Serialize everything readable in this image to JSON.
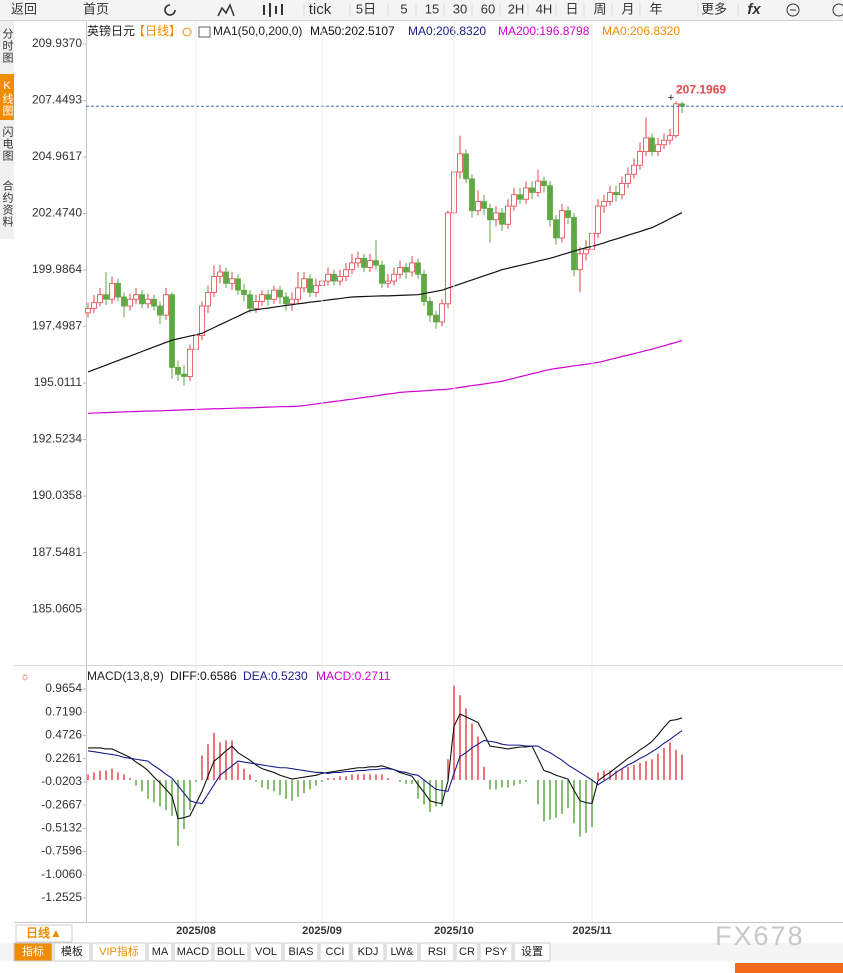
{
  "toolbar": [
    "返回",
    "首页",
    "tick",
    "5日",
    "5",
    "15",
    "30",
    "60",
    "2H",
    "4H",
    "日",
    "周",
    "月",
    "年",
    "更多",
    "fx"
  ],
  "sidebar": [
    "分时图",
    "K线图",
    "闪电图",
    "合约资料"
  ],
  "period_button": "日线▲",
  "indicator_tabs": [
    "指标",
    "模板",
    "VIP指标",
    "MA",
    "MACD",
    "BOLL",
    "VOL",
    "BIAS",
    "CCI",
    "KDJ",
    "LW&",
    "RSI",
    "CR",
    "PSY",
    "设置"
  ],
  "watermark": "FX678",
  "chart_data": [
    {
      "type": "candlestick",
      "symbol": "英镑日元",
      "period": "【日线】",
      "indicator": "MA1(50,0,200,0)",
      "up_color": "#e2474b",
      "down_color": "#5fa843",
      "open": [
        198.1,
        198.3,
        198.55,
        198.9,
        198.7,
        199.4,
        198.8,
        198.4,
        198.7,
        198.9,
        198.5,
        198.7,
        198.4,
        198.0,
        198.9,
        195.7,
        195.4,
        195.3,
        196.5,
        197.1,
        198.4,
        199.0,
        199.7,
        199.9,
        199.4,
        199.6,
        199.1,
        198.9,
        198.3,
        198.6,
        198.9,
        198.7,
        199.1,
        198.8,
        198.5,
        198.7,
        199.2,
        199.6,
        199.0,
        199.3,
        199.5,
        199.8,
        199.5,
        199.7,
        200.0,
        200.3,
        200.5,
        200.1,
        200.4,
        200.2,
        199.4,
        199.5,
        199.8,
        200.1,
        199.9,
        200.3,
        199.8,
        198.6,
        198.0,
        197.7,
        198.5,
        202.5,
        204.3,
        205.1,
        204.0,
        202.6,
        203.0,
        202.7,
        202.2,
        202.5,
        202.0,
        202.8,
        203.3,
        203.1,
        203.6,
        203.4,
        203.9,
        203.7,
        202.2,
        201.4,
        202.6,
        202.3,
        200.0,
        200.7,
        200.9,
        201.6,
        202.8,
        203.0,
        203.4,
        203.3,
        203.8,
        204.2,
        204.6,
        205.2,
        205.8,
        205.2,
        205.5,
        205.7,
        205.9,
        207.3
      ],
      "high": [
        198.55,
        198.9,
        199.2,
        199.9,
        199.7,
        199.6,
        199.0,
        198.95,
        199.2,
        199.1,
        198.95,
        198.9,
        198.6,
        199.2,
        199.0,
        196.0,
        195.8,
        196.7,
        197.4,
        198.6,
        199.3,
        200.2,
        200.2,
        200.1,
        199.9,
        199.8,
        199.4,
        199.1,
        198.9,
        199.1,
        199.1,
        199.3,
        199.3,
        199.0,
        199.0,
        199.9,
        199.9,
        199.8,
        199.6,
        199.8,
        200.1,
        200.0,
        200.0,
        200.3,
        200.7,
        200.8,
        200.7,
        200.7,
        201.3,
        200.4,
        199.8,
        200.1,
        200.4,
        200.3,
        200.6,
        200.5,
        200.0,
        198.8,
        198.2,
        198.7,
        202.6,
        204.6,
        205.9,
        205.3,
        204.2,
        203.5,
        203.3,
        202.9,
        202.8,
        202.7,
        203.1,
        203.6,
        203.6,
        203.9,
        203.9,
        204.4,
        204.1,
        203.9,
        202.4,
        202.9,
        202.8,
        202.5,
        201.0,
        201.3,
        201.9,
        203.1,
        203.3,
        203.7,
        203.7,
        204.1,
        204.5,
        204.9,
        205.6,
        206.7,
        206.0,
        205.8,
        206.0,
        206.2,
        207.4,
        207.4
      ],
      "low": [
        197.9,
        198.1,
        198.4,
        198.45,
        198.5,
        198.6,
        197.9,
        198.2,
        198.5,
        198.3,
        198.3,
        198.2,
        197.6,
        197.8,
        195.2,
        195.1,
        194.9,
        195.1,
        196.2,
        196.9,
        198.1,
        198.8,
        199.4,
        199.2,
        199.1,
        198.9,
        198.6,
        198.1,
        198.1,
        198.4,
        198.4,
        198.5,
        198.5,
        198.2,
        198.2,
        198.5,
        199.0,
        198.8,
        198.8,
        199.1,
        199.3,
        199.3,
        199.3,
        199.5,
        199.8,
        200.1,
        199.9,
        199.9,
        200.0,
        199.2,
        199.2,
        199.3,
        199.6,
        199.6,
        199.7,
        199.6,
        198.4,
        197.7,
        197.4,
        197.5,
        198.3,
        202.3,
        204.0,
        203.8,
        202.3,
        202.4,
        202.4,
        201.2,
        201.9,
        201.7,
        201.8,
        202.6,
        202.9,
        202.9,
        203.1,
        203.2,
        203.4,
        201.9,
        201.1,
        201.2,
        202.0,
        199.7,
        199.0,
        200.4,
        200.6,
        201.4,
        202.5,
        202.8,
        203.0,
        203.1,
        203.6,
        204.0,
        204.4,
        205.0,
        205.0,
        205.0,
        205.3,
        205.5,
        205.8,
        206.9
      ],
      "close": [
        198.3,
        198.55,
        198.9,
        198.7,
        199.4,
        198.8,
        198.4,
        198.7,
        198.9,
        198.5,
        198.7,
        198.4,
        198.0,
        198.9,
        195.7,
        195.4,
        195.3,
        196.5,
        197.1,
        198.4,
        199.0,
        199.7,
        199.9,
        199.4,
        199.6,
        199.1,
        198.9,
        198.3,
        198.6,
        198.9,
        198.7,
        199.1,
        198.8,
        198.5,
        198.7,
        199.2,
        199.6,
        199.0,
        199.3,
        199.5,
        199.8,
        199.5,
        199.7,
        200.0,
        200.3,
        200.5,
        200.1,
        200.4,
        200.2,
        199.4,
        199.5,
        199.8,
        200.1,
        199.9,
        200.3,
        199.8,
        198.6,
        198.0,
        197.7,
        198.5,
        202.5,
        204.3,
        205.1,
        204.0,
        202.6,
        203.0,
        202.7,
        202.2,
        202.5,
        202.0,
        202.8,
        203.3,
        203.1,
        203.6,
        203.4,
        203.9,
        203.7,
        202.2,
        201.4,
        202.6,
        202.3,
        200.0,
        200.7,
        200.9,
        201.6,
        202.8,
        203.0,
        203.4,
        203.3,
        203.8,
        204.2,
        204.6,
        205.2,
        205.8,
        205.2,
        205.5,
        205.7,
        205.9,
        207.3,
        207.2
      ],
      "series": [
        {
          "name": "MA50:202.5107",
          "color": "#111111",
          "values": [
            195.5,
            195.6,
            195.7,
            195.8,
            195.9,
            196.0,
            196.1,
            196.2,
            196.3,
            196.4,
            196.5,
            196.6,
            196.7,
            196.8,
            196.9,
            196.96,
            197.02,
            197.08,
            197.14,
            197.2,
            197.33,
            197.45,
            197.58,
            197.7,
            197.83,
            197.95,
            198.08,
            198.2,
            198.24,
            198.28,
            198.31,
            198.35,
            198.39,
            198.43,
            198.46,
            198.5,
            198.53,
            198.57,
            198.6,
            198.63,
            198.67,
            198.7,
            198.73,
            198.77,
            198.8,
            198.81,
            198.82,
            198.83,
            198.84,
            198.85,
            198.85,
            198.86,
            198.87,
            198.88,
            198.89,
            198.9,
            198.95,
            199.0,
            199.05,
            199.1,
            199.19,
            199.28,
            199.37,
            199.46,
            199.55,
            199.64,
            199.73,
            199.82,
            199.91,
            200.0,
            200.06,
            200.13,
            200.19,
            200.25,
            200.31,
            200.38,
            200.44,
            200.5,
            200.58,
            200.66,
            200.74,
            200.82,
            200.9,
            200.97,
            201.03,
            201.1,
            201.18,
            201.27,
            201.35,
            201.43,
            201.52,
            201.6,
            201.68,
            201.77,
            201.85,
            201.98,
            202.11,
            202.25,
            202.38,
            202.51
          ]
        },
        {
          "name": "MA200:196.8798",
          "color": "#d100d1",
          "values": [
            193.68,
            193.69,
            193.7,
            193.71,
            193.72,
            193.73,
            193.74,
            193.75,
            193.76,
            193.77,
            193.78,
            193.78,
            193.79,
            193.8,
            193.81,
            193.82,
            193.83,
            193.84,
            193.85,
            193.86,
            193.87,
            193.88,
            193.88,
            193.89,
            193.9,
            193.91,
            193.92,
            193.92,
            193.93,
            193.94,
            193.95,
            193.96,
            193.97,
            193.97,
            193.98,
            193.99,
            194.02,
            194.06,
            194.09,
            194.13,
            194.16,
            194.2,
            194.23,
            194.27,
            194.3,
            194.34,
            194.38,
            194.41,
            194.45,
            194.49,
            194.53,
            194.56,
            194.6,
            194.62,
            194.64,
            194.65,
            194.67,
            194.69,
            194.71,
            194.72,
            194.74,
            194.78,
            194.82,
            194.86,
            194.9,
            194.93,
            194.97,
            195.01,
            195.05,
            195.09,
            195.16,
            195.22,
            195.29,
            195.35,
            195.42,
            195.48,
            195.55,
            195.61,
            195.65,
            195.69,
            195.73,
            195.77,
            195.8,
            195.84,
            195.88,
            195.92,
            195.98,
            196.05,
            196.11,
            196.18,
            196.24,
            196.31,
            196.37,
            196.44,
            196.5,
            196.58,
            196.65,
            196.73,
            196.8,
            196.88
          ]
        }
      ],
      "extra_labels": [
        {
          "text": "MA0:206.8320",
          "color": "#1a1a8c"
        },
        {
          "text": "MA0:206.8320",
          "color": "#f08c00"
        }
      ],
      "last_price": 207.1969,
      "last_price_color": "#e2474b",
      "ylim": [
        182.6,
        210.904
      ],
      "yticks": [
        {
          "value": 209.937,
          "label": "209.9370"
        },
        207.4493,
        204.9617,
        {
          "value": 202.474,
          "label": "202.4740"
        },
        199.9864,
        197.4987,
        195.0111,
        192.5234,
        190.0358,
        187.5481,
        185.0605
      ],
      "grid": false
    },
    {
      "type": "macd",
      "title": "MACD(13,8,9)",
      "categories": [
        null,
        null,
        null,
        null,
        null,
        null,
        null,
        null,
        null,
        null,
        null,
        null,
        null,
        null,
        null,
        null,
        null,
        null,
        "2025/08",
        null,
        null,
        null,
        null,
        null,
        null,
        null,
        null,
        null,
        null,
        null,
        null,
        null,
        null,
        null,
        null,
        null,
        null,
        null,
        null,
        "2025/09",
        null,
        null,
        null,
        null,
        null,
        null,
        null,
        null,
        null,
        null,
        null,
        null,
        null,
        null,
        null,
        null,
        null,
        null,
        null,
        null,
        null,
        "2025/10",
        null,
        null,
        null,
        null,
        null,
        null,
        null,
        null,
        null,
        null,
        null,
        null,
        null,
        null,
        null,
        null,
        null,
        null,
        null,
        null,
        null,
        null,
        "2025/11",
        null,
        null,
        null,
        null,
        null,
        null,
        null,
        null,
        null,
        null,
        null,
        null,
        null,
        null,
        null
      ],
      "series": [
        {
          "name": "DIFF:0.6586",
          "color": "#111111",
          "values": [
            0.34,
            0.34,
            0.34,
            0.33,
            0.33,
            0.3,
            0.27,
            0.24,
            0.19,
            0.15,
            0.1,
            0.03,
            -0.03,
            -0.1,
            -0.17,
            -0.41,
            -0.4,
            -0.38,
            -0.25,
            -0.12,
            0.04,
            0.2,
            0.25,
            0.31,
            0.36,
            0.29,
            0.25,
            0.21,
            0.16,
            0.12,
            0.1,
            0.08,
            0.05,
            0.03,
            0.01,
            0.02,
            0.03,
            0.04,
            0.05,
            0.07,
            0.08,
            0.09,
            0.1,
            0.11,
            0.12,
            0.13,
            0.13,
            0.14,
            0.14,
            0.15,
            0.13,
            0.11,
            0.08,
            0.06,
            0.04,
            -0.05,
            -0.13,
            -0.22,
            -0.24,
            -0.25,
            -0.01,
            0.57,
            0.7,
            0.67,
            0.64,
            0.61,
            0.49,
            0.36,
            0.35,
            0.34,
            0.33,
            0.34,
            0.35,
            0.35,
            0.36,
            0.23,
            0.1,
            0.08,
            0.05,
            0.03,
            0.01,
            -0.11,
            -0.22,
            -0.24,
            -0.25,
            -0.01,
            0.04,
            0.08,
            0.13,
            0.18,
            0.23,
            0.27,
            0.32,
            0.36,
            0.41,
            0.48,
            0.56,
            0.63,
            0.64,
            0.6586
          ]
        },
        {
          "name": "DEA:0.5230",
          "color": "#1a1a8c",
          "values": [
            0.31,
            0.3,
            0.29,
            0.28,
            0.27,
            0.26,
            0.24,
            0.23,
            0.22,
            0.21,
            0.2,
            0.15,
            0.11,
            0.06,
            0.02,
            -0.06,
            -0.14,
            -0.22,
            -0.24,
            -0.25,
            -0.15,
            -0.05,
            0.05,
            0.1,
            0.15,
            0.2,
            0.19,
            0.18,
            0.17,
            0.16,
            0.15,
            0.14,
            0.13,
            0.13,
            0.12,
            0.11,
            0.1,
            0.09,
            0.08,
            0.08,
            0.07,
            0.08,
            0.08,
            0.09,
            0.09,
            0.1,
            0.1,
            0.11,
            0.11,
            0.12,
            0.12,
            0.11,
            0.09,
            0.08,
            0.06,
            0.05,
            0.0,
            -0.05,
            -0.1,
            -0.11,
            -0.12,
            0.07,
            0.25,
            0.29,
            0.34,
            0.38,
            0.42,
            0.41,
            0.4,
            0.38,
            0.37,
            0.37,
            0.37,
            0.36,
            0.36,
            0.36,
            0.32,
            0.29,
            0.25,
            0.21,
            0.16,
            0.12,
            0.08,
            0.04,
            0.0,
            -0.05,
            -0.01,
            0.03,
            0.08,
            0.12,
            0.16,
            0.19,
            0.23,
            0.26,
            0.3,
            0.34,
            0.39,
            0.43,
            0.48,
            0.523
          ]
        }
      ],
      "histogram": {
        "name": "MACD:0.2711",
        "color": "#cc00cc",
        "up_color": "#e2474b",
        "down_color": "#5fa843",
        "values": [
          0.06,
          0.08,
          0.1,
          0.1,
          0.12,
          0.08,
          0.06,
          0.02,
          -0.06,
          -0.12,
          -0.2,
          -0.24,
          -0.28,
          -0.32,
          -0.38,
          -0.7,
          -0.52,
          -0.32,
          -0.02,
          0.26,
          0.38,
          0.5,
          0.4,
          0.42,
          0.42,
          0.18,
          0.12,
          0.06,
          -0.02,
          -0.08,
          -0.1,
          -0.12,
          -0.16,
          -0.2,
          -0.22,
          -0.18,
          -0.14,
          -0.1,
          -0.06,
          -0.02,
          0.02,
          0.02,
          0.04,
          0.04,
          0.06,
          0.06,
          0.06,
          0.06,
          0.06,
          0.06,
          0.02,
          0.0,
          -0.02,
          -0.04,
          -0.04,
          -0.2,
          -0.26,
          -0.34,
          -0.28,
          -0.28,
          0.22,
          1.0,
          0.9,
          0.76,
          0.6,
          0.46,
          0.14,
          -0.1,
          -0.1,
          -0.08,
          -0.08,
          -0.06,
          -0.04,
          -0.02,
          0.0,
          -0.26,
          -0.44,
          -0.42,
          -0.4,
          -0.36,
          -0.3,
          -0.46,
          -0.6,
          -0.56,
          -0.5,
          0.08,
          0.1,
          0.1,
          0.1,
          0.12,
          0.14,
          0.16,
          0.18,
          0.2,
          0.22,
          0.28,
          0.34,
          0.4,
          0.32,
          0.2711
        ]
      },
      "ylim": [
        -1.507,
        1.146
      ],
      "yticks": [
        0.9654,
        {
          "value": 0.719,
          "label": "0.7190"
        },
        0.4726,
        0.2261,
        -0.0203,
        -0.2667,
        -0.5132,
        -0.7596,
        {
          "value": -1.006,
          "label": "-1.0060"
        },
        -1.2525
      ]
    }
  ]
}
